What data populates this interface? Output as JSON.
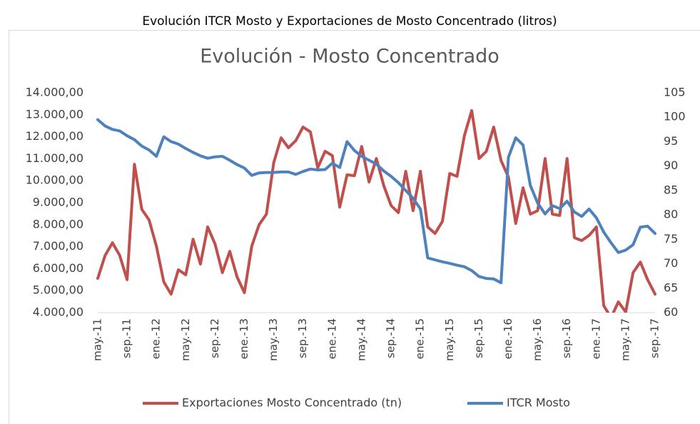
{
  "heading": "Evolución ITCR Mosto y Exportaciones de Mosto Concentrado (litros)",
  "chart_data": {
    "type": "line",
    "title": "Evolución - Mosto Concentrado",
    "categories": [
      "may.-11",
      null,
      null,
      null,
      "sep.-11",
      null,
      null,
      null,
      "ene.-12",
      null,
      null,
      null,
      "may.-12",
      null,
      null,
      null,
      "sep.-12",
      null,
      null,
      null,
      "ene.-13",
      null,
      null,
      null,
      "may.-13",
      null,
      null,
      null,
      "sep.-13",
      null,
      null,
      null,
      "ene.-14",
      null,
      null,
      null,
      "may.-14",
      null,
      null,
      null,
      "sep.-14",
      null,
      null,
      null,
      "ene.-15",
      null,
      null,
      null,
      "may.-15",
      null,
      null,
      null,
      "sep.-15",
      null,
      null,
      null,
      "ene.-16",
      null,
      null,
      null,
      "may.-16",
      null,
      null,
      null,
      "sep.-16",
      null,
      null,
      null,
      "ene.-17",
      null,
      null,
      null,
      "may.-17",
      null,
      null,
      null,
      "sep.-17"
    ],
    "series": [
      {
        "name": "Exportaciones Mosto Concentrado (tn)",
        "color": "#c0504d",
        "values": [
          5560,
          6600,
          7180,
          6600,
          5500,
          10750,
          8700,
          8220,
          7020,
          5400,
          4840,
          5950,
          5720,
          7340,
          6210,
          7900,
          7120,
          5820,
          6790,
          5620,
          4910,
          7020,
          8000,
          8480,
          10820,
          11950,
          11500,
          11820,
          12440,
          12220,
          10590,
          11340,
          11140,
          8800,
          10270,
          10230,
          11560,
          9940,
          11010,
          9780,
          8870,
          8550,
          10430,
          8640,
          10430,
          7900,
          7600,
          8150,
          10330,
          10200,
          12050,
          13190,
          11010,
          11340,
          12440,
          10920,
          10170,
          8060,
          9680,
          8480,
          8640,
          11010,
          8480,
          8420,
          11010,
          7410,
          7280,
          7510,
          7900,
          4320,
          3770,
          4490,
          4030,
          5820,
          6300,
          5490,
          4840
        ]
      },
      {
        "name": "ITCR Mosto",
        "color": "#4f81bd",
        "axis": "y2",
        "values": [
          99.5,
          98.2,
          97.5,
          97.2,
          96.2,
          95.4,
          94.1,
          93.3,
          92.0,
          96.0,
          95.0,
          94.5,
          93.6,
          92.8,
          92.1,
          91.6,
          91.9,
          92.0,
          91.2,
          90.3,
          89.6,
          88.1,
          88.6,
          88.7,
          88.7,
          88.8,
          88.8,
          88.3,
          88.9,
          89.4,
          89.2,
          89.3,
          90.6,
          89.7,
          95.0,
          93.2,
          92.0,
          91.2,
          90.4,
          89.0,
          87.9,
          86.6,
          85.0,
          83.4,
          81.2,
          71.2,
          70.8,
          70.4,
          70.1,
          69.7,
          69.4,
          68.6,
          67.4,
          67.0,
          66.9,
          66.1,
          91.8,
          95.8,
          94.3,
          86.0,
          82.4,
          80.2,
          81.9,
          81.3,
          82.8,
          80.6,
          79.7,
          81.2,
          79.4,
          76.5,
          74.3,
          72.3,
          72.8,
          73.9,
          77.5,
          77.7,
          76.2
        ]
      }
    ],
    "ylim": [
      4000,
      14000
    ],
    "yticks": [
      {
        "value": 4000,
        "label": "4.000,00"
      },
      {
        "value": 5000,
        "label": "5.000,00"
      },
      {
        "value": 6000,
        "label": "6.000,00"
      },
      {
        "value": 7000,
        "label": "7.000,00"
      },
      {
        "value": 8000,
        "label": "8.000,00"
      },
      {
        "value": 9000,
        "label": "9.000,00"
      },
      {
        "value": 10000,
        "label": "10.000,00"
      },
      {
        "value": 11000,
        "label": "11.000,00"
      },
      {
        "value": 12000,
        "label": "12.000,00"
      },
      {
        "value": 13000,
        "label": "13.000,00"
      },
      {
        "value": 14000,
        "label": "14.000,00"
      }
    ],
    "y2lim": [
      60,
      105
    ],
    "y2ticks": [
      60,
      65,
      70,
      75,
      80,
      85,
      90,
      95,
      100,
      105
    ],
    "grid": false,
    "legend": "bottom"
  }
}
